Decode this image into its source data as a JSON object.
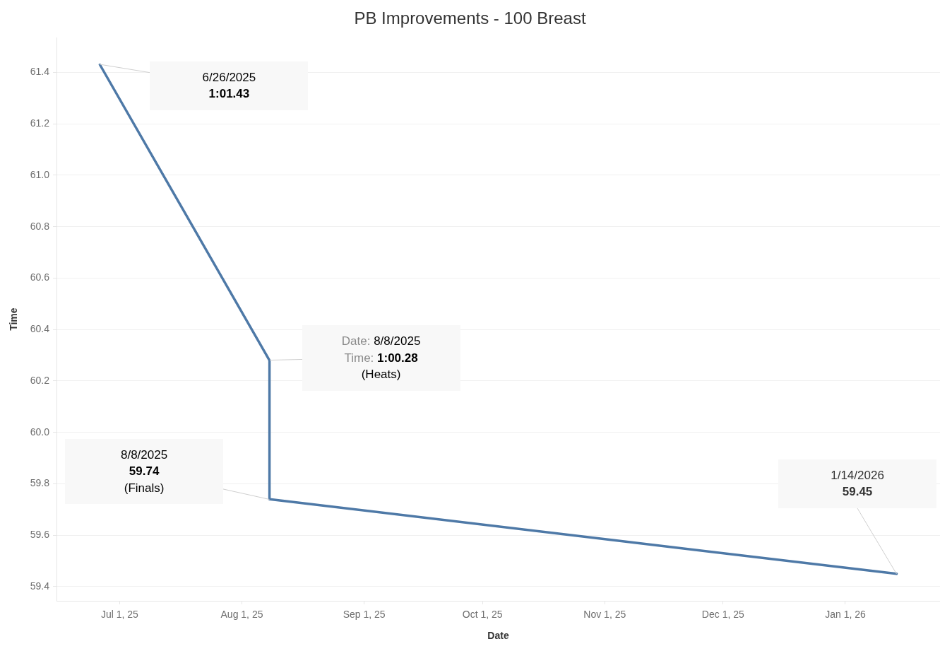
{
  "chart_data": {
    "type": "line",
    "title": "PB Improvements - 100 Breast",
    "xlabel": "Date",
    "ylabel": "Time",
    "x": [
      "2025-06-26",
      "2025-08-08",
      "2025-08-08",
      "2026-01-14"
    ],
    "values": [
      61.43,
      60.28,
      59.74,
      59.45
    ],
    "color": "#4e79a7",
    "xlim": [
      "2025-06-15",
      "2026-01-25"
    ],
    "xticks": [
      {
        "value": "2025-07-01",
        "label": "Jul 1, 25"
      },
      {
        "value": "2025-08-01",
        "label": "Aug 1, 25"
      },
      {
        "value": "2025-09-01",
        "label": "Sep 1, 25"
      },
      {
        "value": "2025-10-01",
        "label": "Oct 1, 25"
      },
      {
        "value": "2025-11-01",
        "label": "Nov 1, 25"
      },
      {
        "value": "2025-12-01",
        "label": "Dec 1, 25"
      },
      {
        "value": "2026-01-01",
        "label": "Jan 1, 26"
      }
    ],
    "ylim": [
      59.345,
      61.535
    ],
    "yticks": [
      59.4,
      59.6,
      59.8,
      {
        "value": 60,
        "label": "60.0"
      },
      60.2,
      60.4,
      60.6,
      60.8,
      {
        "value": 61,
        "label": "61.0"
      },
      61.2,
      61.4
    ],
    "grid": "y",
    "marker": "none",
    "line_style": "solid",
    "annotations": [
      {
        "text": "6/26/2025\n1:01.43",
        "x": "2025-06-26",
        "y": 61.43
      },
      {
        "text": "Date: 8/8/2025\nTime: 1:00.28\n(Heats)",
        "x": "2025-08-08",
        "y": 60.28
      },
      {
        "text": "8/8/2025\n59.74\n(Finals)",
        "x": "2025-08-08",
        "y": 59.74
      },
      {
        "text": "1/14/2026\n59.45",
        "x": "2026-01-14",
        "y": 59.45
      }
    ]
  }
}
